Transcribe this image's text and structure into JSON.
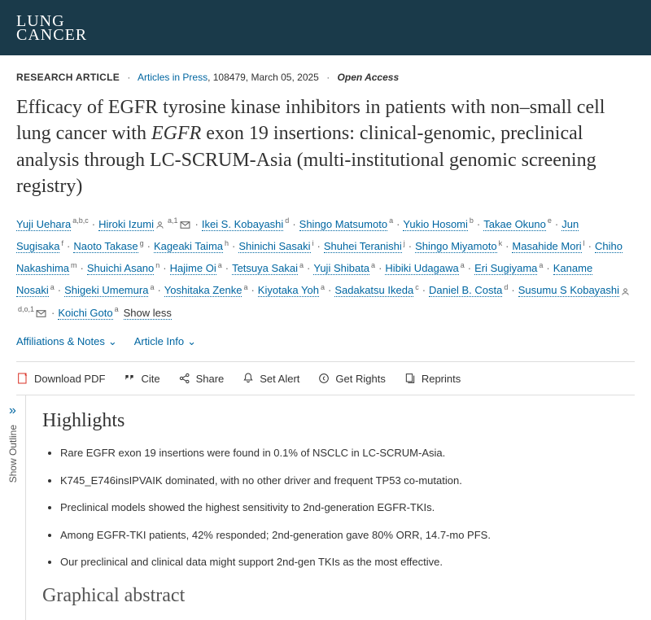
{
  "logo": {
    "top": "LUNG",
    "bottom": "CANCER"
  },
  "meta": {
    "type": "Research Article",
    "section": "Articles in Press",
    "ref": ", 108479, March 05, 2025",
    "oa": "Open Access"
  },
  "title_pre": "Efficacy of EGFR tyrosine kinase inhibitors in patients with non–small cell lung cancer with ",
  "title_em": "EGFR",
  "title_post": " exon 19 insertions: clinical-genomic, preclinical analysis through LC-SCRUM-Asia (multi-institutional genomic screening registry)",
  "authors": [
    {
      "n": "Yuji Uehara",
      "a": "a,b,c"
    },
    {
      "n": "Hiroki Izumi",
      "a": "a,1",
      "person": true,
      "mail": true
    },
    {
      "n": "Ikei S. Kobayashi",
      "a": "d"
    },
    {
      "n": "Shingo Matsumoto",
      "a": "a"
    },
    {
      "n": "Yukio Hosomi",
      "a": "b"
    },
    {
      "n": "Takae Okuno",
      "a": "e"
    },
    {
      "n": "Jun Sugisaka",
      "a": "f"
    },
    {
      "n": "Naoto Takase",
      "a": "g"
    },
    {
      "n": "Kageaki Taima",
      "a": "h"
    },
    {
      "n": "Shinichi Sasaki",
      "a": "i"
    },
    {
      "n": "Shuhei Teranishi",
      "a": "j"
    },
    {
      "n": "Shingo Miyamoto",
      "a": "k"
    },
    {
      "n": "Masahide Mori",
      "a": "l"
    },
    {
      "n": "Chiho Nakashima",
      "a": "m"
    },
    {
      "n": "Shuichi Asano",
      "a": "n"
    },
    {
      "n": "Hajime Oi",
      "a": "a"
    },
    {
      "n": "Tetsuya Sakai",
      "a": "a"
    },
    {
      "n": "Yuji Shibata",
      "a": "a"
    },
    {
      "n": "Hibiki Udagawa",
      "a": "a"
    },
    {
      "n": "Eri Sugiyama",
      "a": "a"
    },
    {
      "n": "Kaname Nosaki",
      "a": "a"
    },
    {
      "n": "Shigeki Umemura",
      "a": "a"
    },
    {
      "n": "Yoshitaka Zenke",
      "a": "a"
    },
    {
      "n": "Kiyotaka Yoh",
      "a": "a"
    },
    {
      "n": "Sadakatsu Ikeda",
      "a": "c"
    },
    {
      "n": "Daniel B. Costa",
      "a": "d"
    },
    {
      "n": "Susumu S Kobayashi",
      "a": "d,o,1",
      "person": true,
      "mail": true
    },
    {
      "n": "Koichi Goto",
      "a": "a"
    }
  ],
  "show_less": "Show less",
  "info": {
    "aff": "Affiliations & Notes",
    "art": "Article Info"
  },
  "actions": {
    "pdf": "Download PDF",
    "cite": "Cite",
    "share": "Share",
    "alert": "Set Alert",
    "rights": "Get Rights",
    "reprints": "Reprints"
  },
  "outline": "Show Outline",
  "highlights_h": "Highlights",
  "highlights": [
    "Rare EGFR exon 19 insertions were found in 0.1% of NSCLC in LC-SCRUM-Asia.",
    "K745_E746insIPVAIK dominated, with no other driver and frequent TP53 co-mutation.",
    "Preclinical models showed the highest sensitivity to 2nd-generation EGFR-TKIs.",
    "Among EGFR-TKI patients, 42% responded; 2nd-generation gave 80% ORR, 14.7-mo PFS.",
    "Our preclinical and clinical data might support 2nd-gen TKIs as the most effective."
  ],
  "ga": "Graphical abstract"
}
